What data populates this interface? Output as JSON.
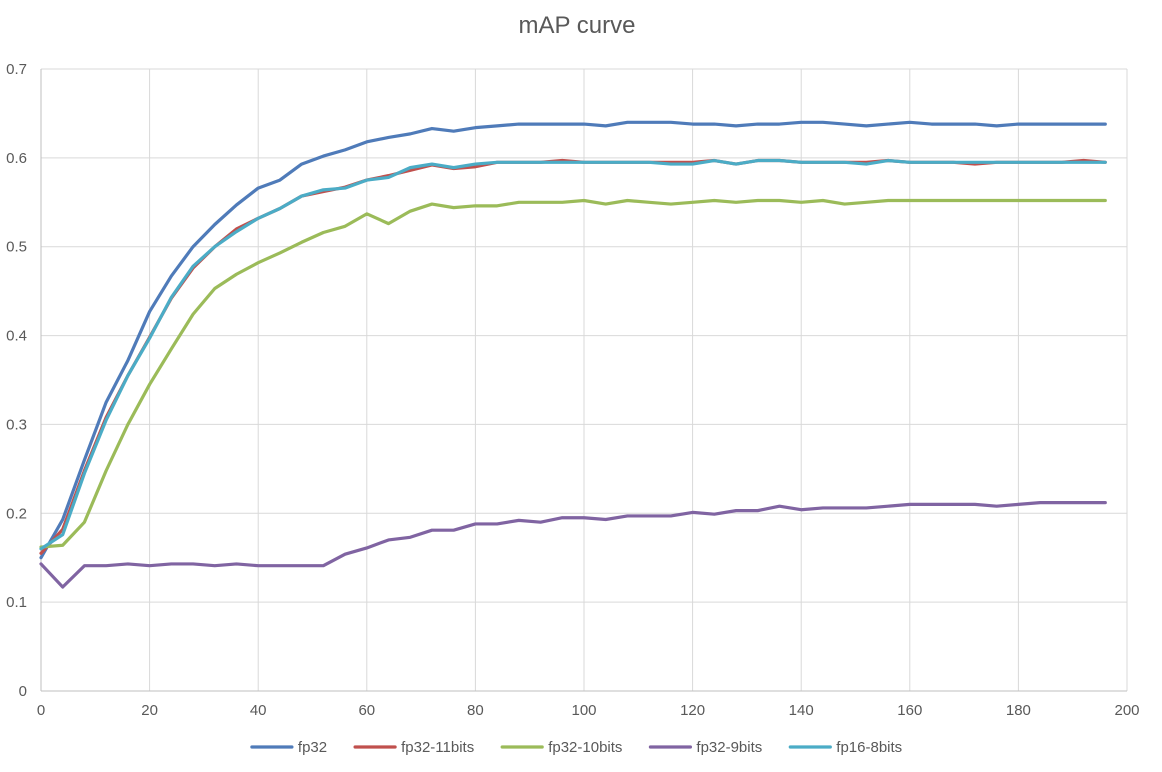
{
  "chart_data": {
    "type": "line",
    "title": "mAP curve",
    "xlabel": "",
    "ylabel": "",
    "xlim": [
      0,
      200
    ],
    "ylim": [
      0,
      0.7
    ],
    "x_ticks": [
      0,
      20,
      40,
      60,
      80,
      100,
      120,
      140,
      160,
      180,
      200
    ],
    "x_tick_labels": [
      "0",
      "20",
      "40",
      "60",
      "80",
      "100",
      "120",
      "140",
      "160",
      "180",
      "200"
    ],
    "y_ticks": [
      0,
      0.1,
      0.2,
      0.3,
      0.4,
      0.5,
      0.6,
      0.7
    ],
    "y_tick_labels": [
      "0",
      "0.1",
      "0.2",
      "0.3",
      "0.4",
      "0.5",
      "0.6",
      "0.7"
    ],
    "grid": true,
    "legend_position": "bottom",
    "x": [
      0,
      4,
      8,
      12,
      16,
      20,
      24,
      28,
      32,
      36,
      40,
      44,
      48,
      52,
      56,
      60,
      64,
      68,
      72,
      76,
      80,
      84,
      88,
      92,
      96,
      100,
      104,
      108,
      112,
      116,
      120,
      124,
      128,
      132,
      136,
      140,
      144,
      148,
      152,
      156,
      160,
      164,
      168,
      172,
      176,
      180,
      184,
      188,
      192,
      196
    ],
    "series": [
      {
        "name": "fp32",
        "color": "#4f7bb9",
        "values": [
          0.15,
          0.193,
          0.26,
          0.325,
          0.372,
          0.427,
          0.467,
          0.5,
          0.525,
          0.547,
          0.566,
          0.575,
          0.593,
          0.602,
          0.609,
          0.618,
          0.623,
          0.627,
          0.633,
          0.63,
          0.634,
          0.636,
          0.638,
          0.638,
          0.638,
          0.638,
          0.636,
          0.64,
          0.64,
          0.64,
          0.638,
          0.638,
          0.636,
          0.638,
          0.638,
          0.64,
          0.64,
          0.638,
          0.636,
          0.638,
          0.64,
          0.638,
          0.638,
          0.638,
          0.636,
          0.638,
          0.638,
          0.638,
          0.638,
          0.638
        ]
      },
      {
        "name": "fp32-11bits",
        "color": "#c0504d",
        "values": [
          0.155,
          0.182,
          0.248,
          0.308,
          0.355,
          0.398,
          0.442,
          0.476,
          0.5,
          0.52,
          0.532,
          0.543,
          0.557,
          0.562,
          0.567,
          0.575,
          0.58,
          0.586,
          0.592,
          0.588,
          0.59,
          0.595,
          0.595,
          0.595,
          0.597,
          0.595,
          0.595,
          0.595,
          0.595,
          0.595,
          0.595,
          0.597,
          0.593,
          0.597,
          0.597,
          0.595,
          0.595,
          0.595,
          0.595,
          0.597,
          0.595,
          0.595,
          0.595,
          0.593,
          0.595,
          0.595,
          0.595,
          0.595,
          0.597,
          0.595
        ]
      },
      {
        "name": "fp32-10bits",
        "color": "#9bbb59",
        "values": [
          0.162,
          0.164,
          0.19,
          0.248,
          0.3,
          0.345,
          0.385,
          0.424,
          0.453,
          0.469,
          0.482,
          0.493,
          0.505,
          0.516,
          0.523,
          0.537,
          0.526,
          0.54,
          0.548,
          0.544,
          0.546,
          0.546,
          0.55,
          0.55,
          0.55,
          0.552,
          0.548,
          0.552,
          0.55,
          0.548,
          0.55,
          0.552,
          0.55,
          0.552,
          0.552,
          0.55,
          0.552,
          0.548,
          0.55,
          0.552,
          0.552,
          0.552,
          0.552,
          0.552,
          0.552,
          0.552,
          0.552,
          0.552,
          0.552,
          0.552
        ]
      },
      {
        "name": "fp32-9bits",
        "color": "#8064a2",
        "values": [
          0.143,
          0.117,
          0.141,
          0.141,
          0.143,
          0.141,
          0.143,
          0.143,
          0.141,
          0.143,
          0.141,
          0.141,
          0.141,
          0.141,
          0.154,
          0.161,
          0.17,
          0.173,
          0.181,
          0.181,
          0.188,
          0.188,
          0.192,
          0.19,
          0.195,
          0.195,
          0.193,
          0.197,
          0.197,
          0.197,
          0.201,
          0.199,
          0.203,
          0.203,
          0.208,
          0.204,
          0.206,
          0.206,
          0.206,
          0.208,
          0.21,
          0.21,
          0.21,
          0.21,
          0.208,
          0.21,
          0.212,
          0.212,
          0.212,
          0.212
        ]
      },
      {
        "name": "fp16-8bits",
        "color": "#4bacc6",
        "values": [
          0.16,
          0.176,
          0.245,
          0.305,
          0.355,
          0.397,
          0.443,
          0.478,
          0.5,
          0.517,
          0.532,
          0.543,
          0.557,
          0.564,
          0.566,
          0.575,
          0.578,
          0.589,
          0.593,
          0.589,
          0.593,
          0.595,
          0.595,
          0.595,
          0.595,
          0.595,
          0.595,
          0.595,
          0.595,
          0.593,
          0.593,
          0.597,
          0.593,
          0.597,
          0.597,
          0.595,
          0.595,
          0.595,
          0.593,
          0.597,
          0.595,
          0.595,
          0.595,
          0.595,
          0.595,
          0.595,
          0.595,
          0.595,
          0.595,
          0.595
        ]
      }
    ]
  }
}
